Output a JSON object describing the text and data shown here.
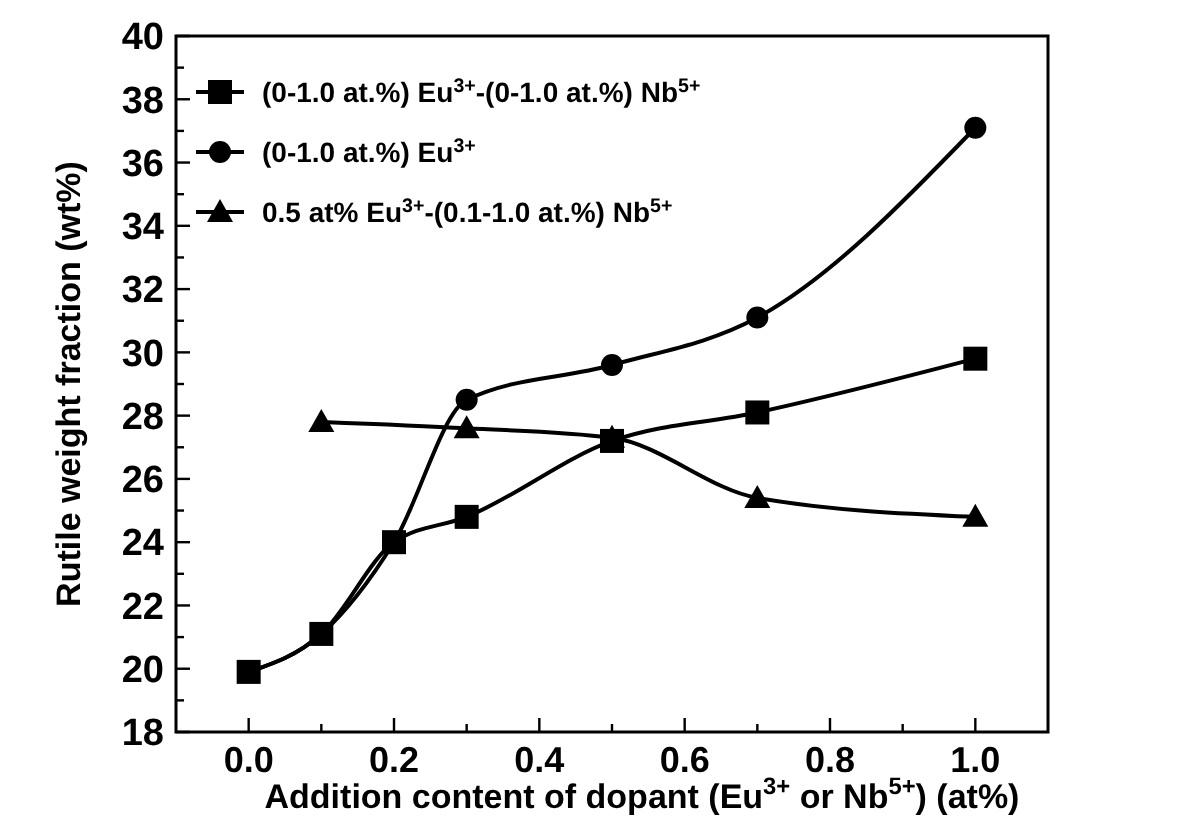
{
  "chart_data": {
    "type": "line",
    "xlabel": "Addition content of dopant (Eu$^{3+}$ or Nb$^{5+}$)  (at%)",
    "ylabel": "Rutile weight fraction (wt%)",
    "xlim": [
      -0.1,
      1.1
    ],
    "xticks": [
      {
        "value": 0,
        "label": "0.0"
      },
      {
        "value": 0.1,
        "label": null
      },
      {
        "value": 0.2,
        "label": "0.2"
      },
      {
        "value": 0.3,
        "label": null
      },
      {
        "value": 0.4,
        "label": "0.4"
      },
      {
        "value": 0.5,
        "label": null
      },
      {
        "value": 0.6,
        "label": "0.6"
      },
      {
        "value": 0.7,
        "label": null
      },
      {
        "value": 0.8,
        "label": "0.8"
      },
      {
        "value": 0.9,
        "label": null
      },
      {
        "value": 1,
        "label": "1.0"
      }
    ],
    "ylim": [
      18,
      40
    ],
    "yticks": [
      18,
      {
        "value": 19,
        "label": null
      },
      20,
      {
        "value": 21,
        "label": null
      },
      22,
      {
        "value": 23,
        "label": null
      },
      24,
      {
        "value": 25,
        "label": null
      },
      26,
      {
        "value": 27,
        "label": null
      },
      28,
      {
        "value": 29,
        "label": null
      },
      30,
      {
        "value": 31,
        "label": null
      },
      32,
      {
        "value": 33,
        "label": null
      },
      34,
      {
        "value": 35,
        "label": null
      },
      36,
      {
        "value": 37,
        "label": null
      },
      38,
      {
        "value": 39,
        "label": null
      },
      40
    ],
    "grid": false,
    "legend": "top left",
    "line_style": "solid",
    "series": [
      {
        "name": "(0-1.0 at.%) Eu$^{3+}$-(0-1.0 at.%) Nb$^{5+}$",
        "color": "#000000",
        "marker": "square",
        "x": [
          0,
          0.1,
          0.2,
          0.3,
          0.5,
          0.7,
          1.0
        ],
        "values": [
          19.9,
          21.1,
          24.0,
          24.8,
          27.2,
          28.1,
          29.8
        ]
      },
      {
        "name": "(0-1.0 at.%) Eu$^{3+}$",
        "color": "#000000",
        "marker": "circle",
        "x": [
          0,
          0.1,
          0.2,
          0.3,
          0.5,
          0.7,
          1.0
        ],
        "values": [
          19.9,
          21.1,
          24.0,
          28.5,
          29.6,
          31.1,
          37.1
        ]
      },
      {
        "name": "0.5 at% Eu$^{3+}$-(0.1-1.0 at.%) Nb$^{5+}$",
        "color": "#000000",
        "marker": "triangle",
        "x": [
          0.1,
          0.3,
          0.5,
          0.7,
          1.0
        ],
        "values": [
          27.8,
          27.6,
          27.3,
          25.4,
          24.8
        ]
      }
    ]
  }
}
